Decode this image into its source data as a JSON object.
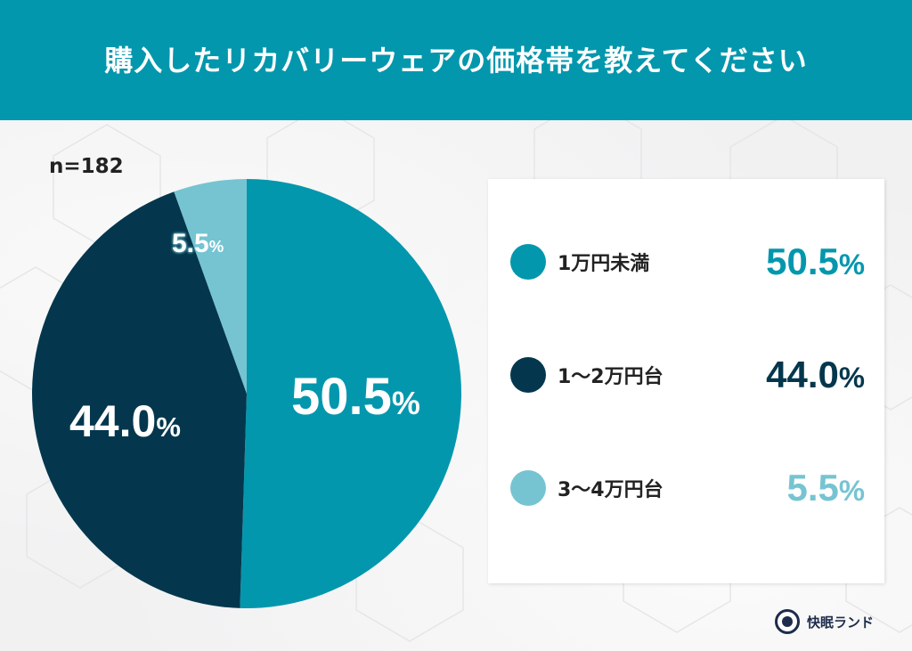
{
  "header": {
    "title": "購入したリカバリーウェアの価格帯を教えてください"
  },
  "sample_size": "n=182",
  "colors": {
    "header_bg": "#0397ad",
    "slice_1": "#0397ad",
    "slice_2": "#04374d",
    "slice_3": "#76c4d2"
  },
  "pie_labels": {
    "a": {
      "num": "50.5",
      "pct": "%"
    },
    "b": {
      "num": "44.0",
      "pct": "%"
    },
    "c": {
      "num": "5.5",
      "pct": "%"
    }
  },
  "legend": [
    {
      "label": "1万円未満",
      "num": "50.5",
      "pct": "%",
      "color": "#0397ad"
    },
    {
      "label": "1〜2万円台",
      "num": "44.0",
      "pct": "%",
      "color": "#04374d"
    },
    {
      "label": "3〜4万円台",
      "num": "5.5",
      "pct": "%",
      "color": "#76c4d2"
    }
  ],
  "logo": {
    "text": "快眠ランド"
  },
  "chart_data": {
    "type": "pie",
    "title": "購入したリカバリーウェアの価格帯を教えてください",
    "subtitle": "n=182",
    "categories": [
      "1万円未満",
      "1〜2万円台",
      "3〜4万円台"
    ],
    "values": [
      50.5,
      44.0,
      5.5
    ],
    "unit": "%",
    "colors": [
      "#0397ad",
      "#04374d",
      "#76c4d2"
    ],
    "start_angle": "12 o'clock, clockwise",
    "legend_position": "right"
  }
}
